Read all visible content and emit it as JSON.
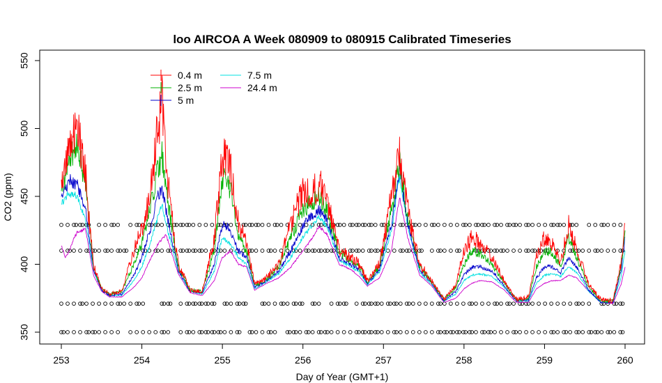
{
  "chart_data": {
    "type": "line",
    "title": "loo AIRCOA A  Week 080909 to 080915  Calibrated Timeseries",
    "xlabel": "Day of Year (GMT+1)",
    "ylabel": "CO2 (ppm)",
    "xlim": [
      253,
      260
    ],
    "ylim": [
      345,
      555
    ],
    "x_ticks": [
      "253",
      "254",
      "255",
      "256",
      "257",
      "258",
      "259",
      "260"
    ],
    "y_ticks": [
      "350",
      "400",
      "450",
      "500",
      "550"
    ],
    "grid": false,
    "legend": "top-left",
    "series": [
      {
        "name": "0.4 m",
        "color": "#ff0000",
        "x": [
          253.0,
          253.1,
          253.2,
          253.3,
          253.4,
          253.5,
          253.6,
          253.75,
          253.9,
          254.0,
          254.1,
          254.2,
          254.25,
          254.3,
          254.45,
          254.6,
          254.75,
          254.9,
          255.0,
          255.1,
          255.2,
          255.3,
          255.4,
          255.55,
          255.7,
          255.85,
          256.0,
          256.1,
          256.2,
          256.3,
          256.45,
          256.6,
          256.7,
          256.8,
          256.95,
          257.1,
          257.2,
          257.3,
          257.45,
          257.6,
          257.75,
          257.9,
          258.0,
          258.1,
          258.2,
          258.35,
          258.5,
          258.65,
          258.8,
          258.9,
          259.0,
          259.1,
          259.2,
          259.3,
          259.4,
          259.55,
          259.7,
          259.85,
          259.95,
          260.0
        ],
        "y": [
          455,
          485,
          500,
          465,
          400,
          382,
          378,
          380,
          410,
          425,
          450,
          500,
          520,
          470,
          400,
          381,
          380,
          420,
          480,
          470,
          430,
          415,
          385,
          390,
          400,
          430,
          455,
          450,
          460,
          448,
          410,
          405,
          400,
          388,
          400,
          450,
          480,
          440,
          400,
          388,
          374,
          385,
          410,
          420,
          415,
          405,
          388,
          374,
          376,
          405,
          420,
          415,
          400,
          430,
          410,
          385,
          374,
          373,
          400,
          430
        ]
      },
      {
        "name": "2.5 m",
        "color": "#00b000",
        "x": [
          253.0,
          253.1,
          253.2,
          253.3,
          253.4,
          253.5,
          253.6,
          253.75,
          253.9,
          254.0,
          254.1,
          254.2,
          254.25,
          254.3,
          254.45,
          254.6,
          254.75,
          254.9,
          255.0,
          255.1,
          255.2,
          255.3,
          255.4,
          255.55,
          255.7,
          255.85,
          256.0,
          256.1,
          256.2,
          256.3,
          256.45,
          256.6,
          256.7,
          256.8,
          256.95,
          257.1,
          257.2,
          257.3,
          257.45,
          257.6,
          257.75,
          257.9,
          258.0,
          258.1,
          258.2,
          258.35,
          258.5,
          258.65,
          258.8,
          258.9,
          259.0,
          259.1,
          259.2,
          259.3,
          259.4,
          259.55,
          259.7,
          259.85,
          259.95,
          260.0
        ],
        "y": [
          455,
          475,
          490,
          458,
          398,
          382,
          378,
          380,
          400,
          415,
          440,
          470,
          480,
          455,
          398,
          381,
          380,
          410,
          465,
          455,
          420,
          410,
          384,
          389,
          398,
          420,
          440,
          445,
          450,
          440,
          408,
          403,
          398,
          387,
          398,
          440,
          475,
          435,
          398,
          387,
          374,
          383,
          400,
          410,
          408,
          400,
          386,
          374,
          375,
          398,
          410,
          408,
          398,
          420,
          405,
          383,
          373,
          373,
          398,
          425
        ]
      },
      {
        "name": "5 m",
        "color": "#0000cc",
        "x": [
          253.0,
          253.1,
          253.2,
          253.3,
          253.4,
          253.5,
          253.6,
          253.75,
          253.9,
          254.0,
          254.1,
          254.2,
          254.25,
          254.3,
          254.45,
          254.6,
          254.75,
          254.9,
          255.0,
          255.1,
          255.2,
          255.3,
          255.4,
          255.55,
          255.7,
          255.85,
          256.0,
          256.1,
          256.2,
          256.3,
          256.45,
          256.6,
          256.7,
          256.8,
          256.95,
          257.1,
          257.2,
          257.3,
          257.45,
          257.6,
          257.75,
          257.9,
          258.0,
          258.1,
          258.2,
          258.35,
          258.5,
          258.65,
          258.8,
          258.9,
          259.0,
          259.1,
          259.2,
          259.3,
          259.4,
          259.55,
          259.7,
          259.85,
          259.95,
          260.0
        ],
        "y": [
          452,
          462,
          458,
          440,
          396,
          381,
          377,
          378,
          392,
          405,
          425,
          450,
          455,
          440,
          396,
          380,
          379,
          400,
          430,
          425,
          410,
          405,
          383,
          388,
          395,
          410,
          428,
          435,
          440,
          432,
          405,
          400,
          396,
          386,
          396,
          430,
          470,
          430,
          396,
          386,
          373,
          380,
          392,
          398,
          398,
          395,
          384,
          373,
          374,
          390,
          398,
          398,
          394,
          405,
          398,
          381,
          372,
          372,
          395,
          420
        ]
      },
      {
        "name": "7.5 m",
        "color": "#00e0e0",
        "x": [
          253.0,
          253.1,
          253.2,
          253.3,
          253.4,
          253.5,
          253.6,
          253.75,
          253.9,
          254.0,
          254.1,
          254.2,
          254.25,
          254.3,
          254.45,
          254.6,
          254.75,
          254.9,
          255.0,
          255.1,
          255.2,
          255.3,
          255.4,
          255.55,
          255.7,
          255.85,
          256.0,
          256.1,
          256.2,
          256.3,
          256.45,
          256.6,
          256.7,
          256.8,
          256.95,
          257.1,
          257.2,
          257.3,
          257.45,
          257.6,
          257.75,
          257.9,
          258.0,
          258.1,
          258.2,
          258.35,
          258.5,
          258.65,
          258.8,
          258.9,
          259.0,
          259.1,
          259.2,
          259.3,
          259.4,
          259.55,
          259.7,
          259.85,
          259.95,
          260.0
        ],
        "y": [
          445,
          452,
          450,
          432,
          395,
          381,
          377,
          377,
          388,
          398,
          415,
          435,
          445,
          430,
          395,
          380,
          378,
          395,
          420,
          415,
          405,
          400,
          382,
          387,
          393,
          405,
          420,
          428,
          435,
          428,
          403,
          398,
          394,
          385,
          394,
          425,
          465,
          428,
          394,
          385,
          373,
          378,
          388,
          392,
          393,
          391,
          383,
          373,
          373,
          386,
          392,
          393,
          391,
          398,
          394,
          380,
          372,
          372,
          390,
          410
        ]
      },
      {
        "name": "24.4 m",
        "color": "#cc00cc",
        "x": [
          253.0,
          253.05,
          253.1,
          253.15,
          253.2,
          253.3,
          253.4,
          253.5,
          253.6,
          253.75,
          253.9,
          254.0,
          254.1,
          254.2,
          254.3,
          254.45,
          254.6,
          254.75,
          254.9,
          255.0,
          255.1,
          255.2,
          255.3,
          255.4,
          255.55,
          255.7,
          255.85,
          256.0,
          256.1,
          256.2,
          256.3,
          256.45,
          256.6,
          256.7,
          256.8,
          256.95,
          257.1,
          257.2,
          257.3,
          257.45,
          257.6,
          257.75,
          257.9,
          258.0,
          258.1,
          258.2,
          258.35,
          258.5,
          258.65,
          258.8,
          258.9,
          259.0,
          259.1,
          259.2,
          259.3,
          259.4,
          259.55,
          259.7,
          259.85,
          259.95,
          260.0
        ],
        "y": [
          414,
          405,
          410,
          418,
          424,
          426,
          392,
          380,
          376,
          376,
          383,
          390,
          403,
          415,
          422,
          393,
          379,
          377,
          388,
          405,
          410,
          400,
          398,
          381,
          386,
          390,
          398,
          410,
          418,
          428,
          422,
          400,
          396,
          391,
          384,
          390,
          410,
          450,
          420,
          392,
          384,
          372,
          375,
          382,
          386,
          388,
          387,
          381,
          372,
          372,
          382,
          386,
          388,
          388,
          392,
          390,
          380,
          372,
          371,
          385,
          398
        ]
      }
    ],
    "flag_rows": [
      350,
      371,
      410,
      429
    ],
    "flag_spacing_days": 0.078
  },
  "legend": {
    "col1": [
      "0.4 m",
      "2.5 m",
      "5 m"
    ],
    "col2": [
      "7.5 m",
      "24.4 m"
    ]
  }
}
